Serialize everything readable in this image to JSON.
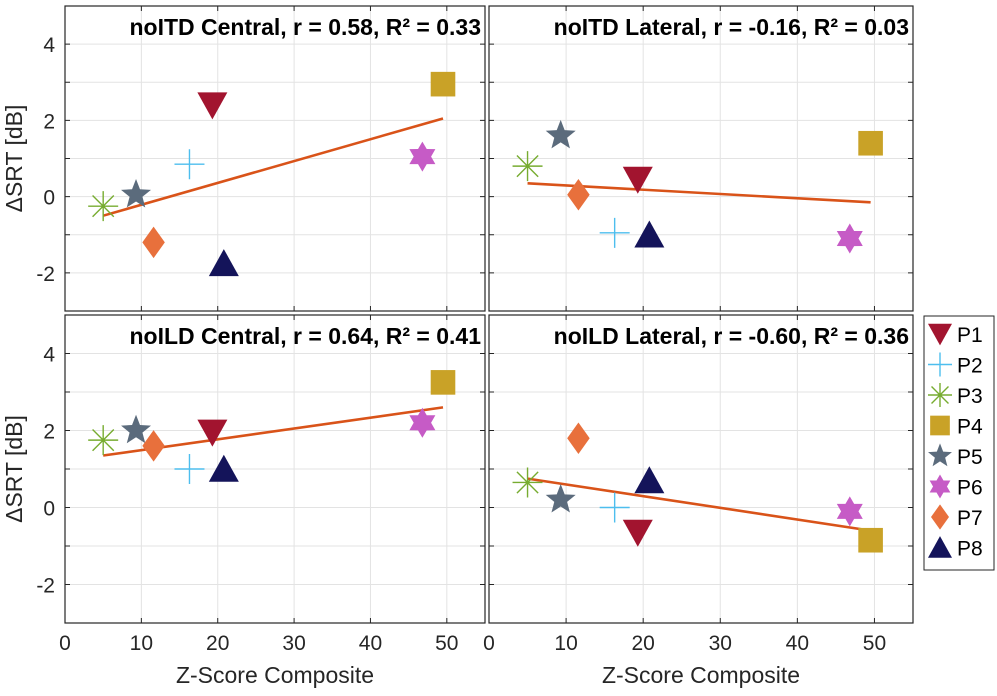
{
  "legend": {
    "entries": [
      {
        "label": "P1",
        "marker": "triangle-down",
        "color": "#A2142F"
      },
      {
        "label": "P2",
        "marker": "plus",
        "color": "#4DBEEE"
      },
      {
        "label": "P3",
        "marker": "asterisk",
        "color": "#77AC30"
      },
      {
        "label": "P4",
        "marker": "square",
        "color": "#C9A227"
      },
      {
        "label": "P5",
        "marker": "pentagram",
        "color": "#5B6B7C"
      },
      {
        "label": "P6",
        "marker": "hexagram",
        "color": "#C65BC6"
      },
      {
        "label": "P7",
        "marker": "diamond",
        "color": "#E8703C"
      },
      {
        "label": "P8",
        "marker": "triangle-up",
        "color": "#14145A"
      }
    ]
  },
  "chart_data": [
    {
      "type": "scatter",
      "title": "noITD Central, r = 0.58, R² = 0.33",
      "xlabel": "",
      "ylabel": "ΔSRT [dB]",
      "xlim": [
        0,
        55
      ],
      "ylim": [
        -3,
        5
      ],
      "xticks": [
        "0",
        "10",
        "20",
        "30",
        "40",
        "50"
      ],
      "yticks": [
        "-2",
        "0",
        "2",
        "4"
      ],
      "grid": true,
      "points": [
        {
          "participant": "P1",
          "x": 19.3,
          "y": 2.4
        },
        {
          "participant": "P2",
          "x": 16.3,
          "y": 0.85
        },
        {
          "participant": "P3",
          "x": 5.0,
          "y": -0.25
        },
        {
          "participant": "P4",
          "x": 49.5,
          "y": 2.95
        },
        {
          "participant": "P5",
          "x": 9.3,
          "y": 0.05
        },
        {
          "participant": "P6",
          "x": 46.8,
          "y": 1.05
        },
        {
          "participant": "P7",
          "x": 11.6,
          "y": -1.2
        },
        {
          "participant": "P8",
          "x": 20.8,
          "y": -1.75
        }
      ],
      "fit_line": {
        "x": [
          5,
          49.5
        ],
        "y": [
          -0.5,
          2.05
        ],
        "color": "#D95319"
      }
    },
    {
      "type": "scatter",
      "title": "noITD Lateral, r = -0.16, R² = 0.03",
      "xlabel": "",
      "ylabel": "",
      "xlim": [
        0,
        55
      ],
      "ylim": [
        -3,
        5
      ],
      "xticks": [
        "0",
        "10",
        "20",
        "30",
        "40",
        "50"
      ],
      "yticks": [
        "-2",
        "0",
        "2",
        "4"
      ],
      "grid": true,
      "points": [
        {
          "participant": "P1",
          "x": 19.3,
          "y": 0.45
        },
        {
          "participant": "P2",
          "x": 16.3,
          "y": -0.95
        },
        {
          "participant": "P3",
          "x": 5.0,
          "y": 0.8
        },
        {
          "participant": "P4",
          "x": 49.5,
          "y": 1.4
        },
        {
          "participant": "P5",
          "x": 9.3,
          "y": 1.6
        },
        {
          "participant": "P6",
          "x": 46.8,
          "y": -1.1
        },
        {
          "participant": "P7",
          "x": 11.6,
          "y": 0.05
        },
        {
          "participant": "P8",
          "x": 20.8,
          "y": -1.0
        }
      ],
      "fit_line": {
        "x": [
          5,
          49.5
        ],
        "y": [
          0.35,
          -0.15
        ],
        "color": "#D95319"
      }
    },
    {
      "type": "scatter",
      "title": "noILD Central, r = 0.64, R² = 0.41",
      "xlabel": "Z-Score Composite",
      "ylabel": "ΔSRT [dB]",
      "xlim": [
        0,
        55
      ],
      "ylim": [
        -3,
        5
      ],
      "xticks": [
        "0",
        "10",
        "20",
        "30",
        "40",
        "50"
      ],
      "yticks": [
        "-2",
        "0",
        "2",
        "4"
      ],
      "grid": true,
      "points": [
        {
          "participant": "P1",
          "x": 19.3,
          "y": 1.95
        },
        {
          "participant": "P2",
          "x": 16.3,
          "y": 1.0
        },
        {
          "participant": "P3",
          "x": 5.0,
          "y": 1.75
        },
        {
          "participant": "P4",
          "x": 49.5,
          "y": 3.25
        },
        {
          "participant": "P5",
          "x": 9.3,
          "y": 2.0
        },
        {
          "participant": "P6",
          "x": 46.8,
          "y": 2.2
        },
        {
          "participant": "P7",
          "x": 11.6,
          "y": 1.6
        },
        {
          "participant": "P8",
          "x": 20.8,
          "y": 1.0
        }
      ],
      "fit_line": {
        "x": [
          5,
          49.5
        ],
        "y": [
          1.35,
          2.6
        ],
        "color": "#D95319"
      }
    },
    {
      "type": "scatter",
      "title": "noILD Lateral, r = -0.60, R² = 0.36",
      "xlabel": "Z-Score Composite",
      "ylabel": "",
      "xlim": [
        0,
        55
      ],
      "ylim": [
        -3,
        5
      ],
      "xticks": [
        "0",
        "10",
        "20",
        "30",
        "40",
        "50"
      ],
      "yticks": [
        "-2",
        "0",
        "2",
        "4"
      ],
      "grid": true,
      "points": [
        {
          "participant": "P1",
          "x": 19.3,
          "y": -0.65
        },
        {
          "participant": "P2",
          "x": 16.3,
          "y": 0.0
        },
        {
          "participant": "P3",
          "x": 5.0,
          "y": 0.65
        },
        {
          "participant": "P4",
          "x": 49.5,
          "y": -0.85
        },
        {
          "participant": "P5",
          "x": 9.3,
          "y": 0.2
        },
        {
          "participant": "P6",
          "x": 46.8,
          "y": -0.1
        },
        {
          "participant": "P7",
          "x": 11.6,
          "y": 1.8
        },
        {
          "participant": "P8",
          "x": 20.8,
          "y": 0.7
        }
      ],
      "fit_line": {
        "x": [
          5,
          49.5
        ],
        "y": [
          0.75,
          -0.6
        ],
        "color": "#D95319"
      }
    }
  ]
}
